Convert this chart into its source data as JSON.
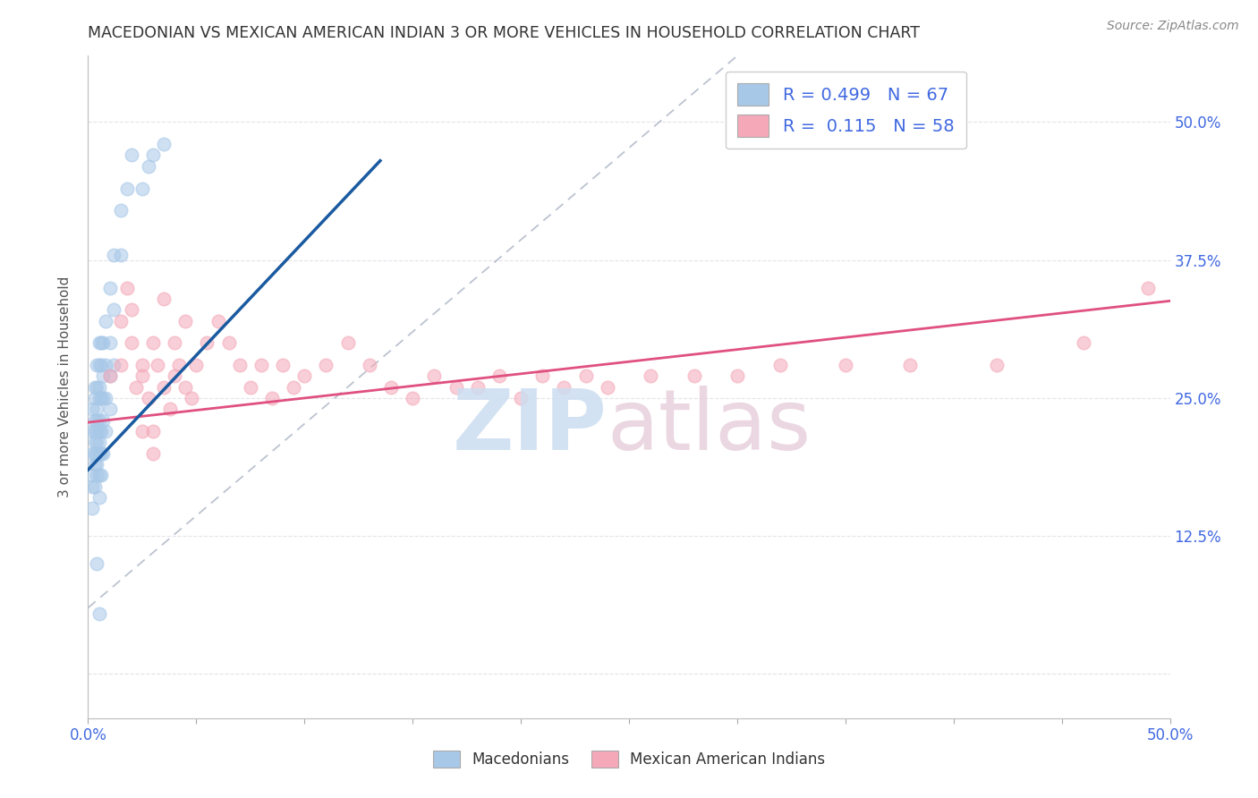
{
  "title": "MACEDONIAN VS MEXICAN AMERICAN INDIAN 3 OR MORE VEHICLES IN HOUSEHOLD CORRELATION CHART",
  "source": "Source: ZipAtlas.com",
  "ylabel": "3 or more Vehicles in Household",
  "xlim": [
    0.0,
    0.5
  ],
  "ylim": [
    -0.04,
    0.56
  ],
  "ytick_positions": [
    0.0,
    0.125,
    0.25,
    0.375,
    0.5
  ],
  "ytick_labels": [
    "",
    "12.5%",
    "25.0%",
    "37.5%",
    "50.0%"
  ],
  "color_blue": "#a8c8e8",
  "color_pink": "#f4a8b8",
  "color_blue_line": "#1a5aa0",
  "color_pink_line": "#e05080",
  "color_dashed": "#b0b8c8",
  "grid_color": "#e0e0e8",
  "background_color": "#ffffff",
  "title_color": "#333333",
  "axis_label_color": "#555555",
  "tick_color": "#4169e1",
  "macedonian_x": [
    0.002,
    0.002,
    0.002,
    0.002,
    0.002,
    0.002,
    0.003,
    0.003,
    0.003,
    0.003,
    0.003,
    0.003,
    0.003,
    0.003,
    0.004,
    0.004,
    0.004,
    0.004,
    0.004,
    0.004,
    0.004,
    0.004,
    0.004,
    0.005,
    0.005,
    0.005,
    0.005,
    0.005,
    0.005,
    0.005,
    0.005,
    0.005,
    0.005,
    0.006,
    0.006,
    0.006,
    0.006,
    0.006,
    0.006,
    0.007,
    0.007,
    0.007,
    0.007,
    0.007,
    0.008,
    0.008,
    0.008,
    0.008,
    0.01,
    0.01,
    0.01,
    0.01,
    0.012,
    0.012,
    0.012,
    0.015,
    0.015,
    0.018,
    0.02,
    0.025,
    0.028,
    0.03,
    0.035,
    0.004,
    0.005
  ],
  "macedonian_y": [
    0.2,
    0.22,
    0.18,
    0.24,
    0.15,
    0.17,
    0.22,
    0.25,
    0.19,
    0.21,
    0.17,
    0.23,
    0.2,
    0.26,
    0.23,
    0.26,
    0.2,
    0.18,
    0.22,
    0.28,
    0.21,
    0.24,
    0.19,
    0.25,
    0.28,
    0.22,
    0.2,
    0.18,
    0.26,
    0.3,
    0.23,
    0.21,
    0.16,
    0.28,
    0.25,
    0.22,
    0.3,
    0.2,
    0.18,
    0.3,
    0.27,
    0.25,
    0.23,
    0.2,
    0.32,
    0.28,
    0.25,
    0.22,
    0.35,
    0.3,
    0.27,
    0.24,
    0.38,
    0.33,
    0.28,
    0.42,
    0.38,
    0.44,
    0.47,
    0.44,
    0.46,
    0.47,
    0.48,
    0.1,
    0.055
  ],
  "mexican_x": [
    0.01,
    0.015,
    0.015,
    0.018,
    0.02,
    0.02,
    0.022,
    0.025,
    0.025,
    0.028,
    0.03,
    0.03,
    0.032,
    0.035,
    0.035,
    0.038,
    0.04,
    0.04,
    0.042,
    0.045,
    0.045,
    0.048,
    0.05,
    0.055,
    0.06,
    0.065,
    0.07,
    0.075,
    0.08,
    0.085,
    0.09,
    0.095,
    0.1,
    0.11,
    0.12,
    0.13,
    0.14,
    0.15,
    0.16,
    0.17,
    0.18,
    0.19,
    0.2,
    0.21,
    0.22,
    0.23,
    0.24,
    0.26,
    0.28,
    0.3,
    0.32,
    0.35,
    0.38,
    0.42,
    0.46,
    0.49,
    0.025,
    0.03
  ],
  "mexican_y": [
    0.27,
    0.32,
    0.28,
    0.35,
    0.33,
    0.3,
    0.26,
    0.28,
    0.27,
    0.25,
    0.3,
    0.22,
    0.28,
    0.34,
    0.26,
    0.24,
    0.3,
    0.27,
    0.28,
    0.32,
    0.26,
    0.25,
    0.28,
    0.3,
    0.32,
    0.3,
    0.28,
    0.26,
    0.28,
    0.25,
    0.28,
    0.26,
    0.27,
    0.28,
    0.3,
    0.28,
    0.26,
    0.25,
    0.27,
    0.26,
    0.26,
    0.27,
    0.25,
    0.27,
    0.26,
    0.27,
    0.26,
    0.27,
    0.27,
    0.27,
    0.28,
    0.28,
    0.28,
    0.28,
    0.3,
    0.35,
    0.22,
    0.2
  ]
}
